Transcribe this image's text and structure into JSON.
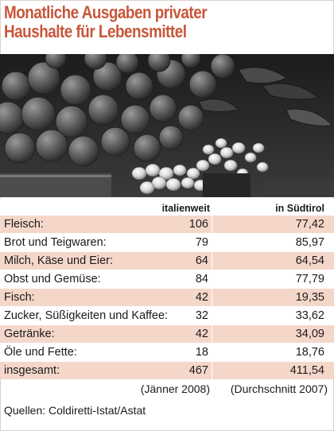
{
  "title_line1": "Monatliche Ausgaben privater",
  "title_line2": "Haushalte für Lebensmittel",
  "photo": {
    "icon": "vegetable-market-photo"
  },
  "chart_data": {
    "type": "table",
    "columns": [
      "",
      "italienweit",
      "in Südtirol"
    ],
    "rows": [
      {
        "label": "Fleisch:",
        "italienweit": "106",
        "suedtirol": "77,42"
      },
      {
        "label": "Brot und Teigwaren:",
        "italienweit": "79",
        "suedtirol": "85,97"
      },
      {
        "label": "Milch, Käse und Eier:",
        "italienweit": "64",
        "suedtirol": "64,54"
      },
      {
        "label": "Obst und Gemüse:",
        "italienweit": "84",
        "suedtirol": "77,79"
      },
      {
        "label": "Fisch:",
        "italienweit": "42",
        "suedtirol": "19,35"
      },
      {
        "label": "Zucker, Süßigkeiten und Kaffee:",
        "italienweit": "32",
        "suedtirol": "33,62"
      },
      {
        "label": "Getränke:",
        "italienweit": "42",
        "suedtirol": "34,09"
      },
      {
        "label": "Öle und Fette:",
        "italienweit": "18",
        "suedtirol": "18,76"
      },
      {
        "label": "insgesamt:",
        "italienweit": "467",
        "suedtirol": "411,54"
      }
    ],
    "notes": {
      "italienweit": "(Jänner 2008)",
      "suedtirol": "(Durchschnitt 2007)"
    }
  },
  "source": "Quellen: Coldiretti-Istat/Astat",
  "colors": {
    "title": "#c8563a",
    "row_band": "#f5d7ca"
  }
}
